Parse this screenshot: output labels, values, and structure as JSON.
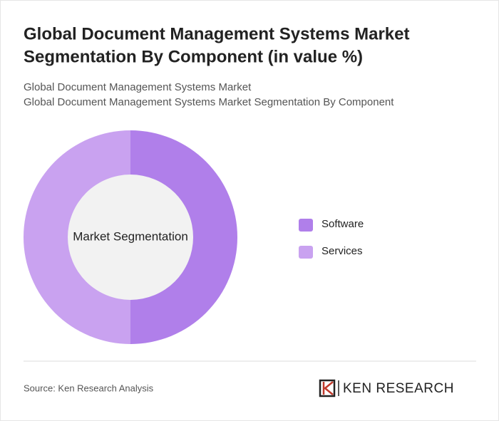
{
  "chart_data": {
    "type": "donut",
    "title": [
      "Global Document Management Systems Market",
      "Segmentation By Component (in value %)"
    ],
    "subtitle": [
      "Global Document Management Systems Market",
      "Global Document Management Systems Market Segmentation By Component"
    ],
    "center_label": "Market Segmentation",
    "categories": [
      "Software",
      "Services"
    ],
    "values": [
      50,
      50
    ],
    "colors": [
      "#b07fea",
      "#c9a2f0"
    ],
    "legend": "right"
  },
  "footer": {
    "source": "Source: Ken Research Analysis",
    "logo": "KEN RESEARCH"
  }
}
